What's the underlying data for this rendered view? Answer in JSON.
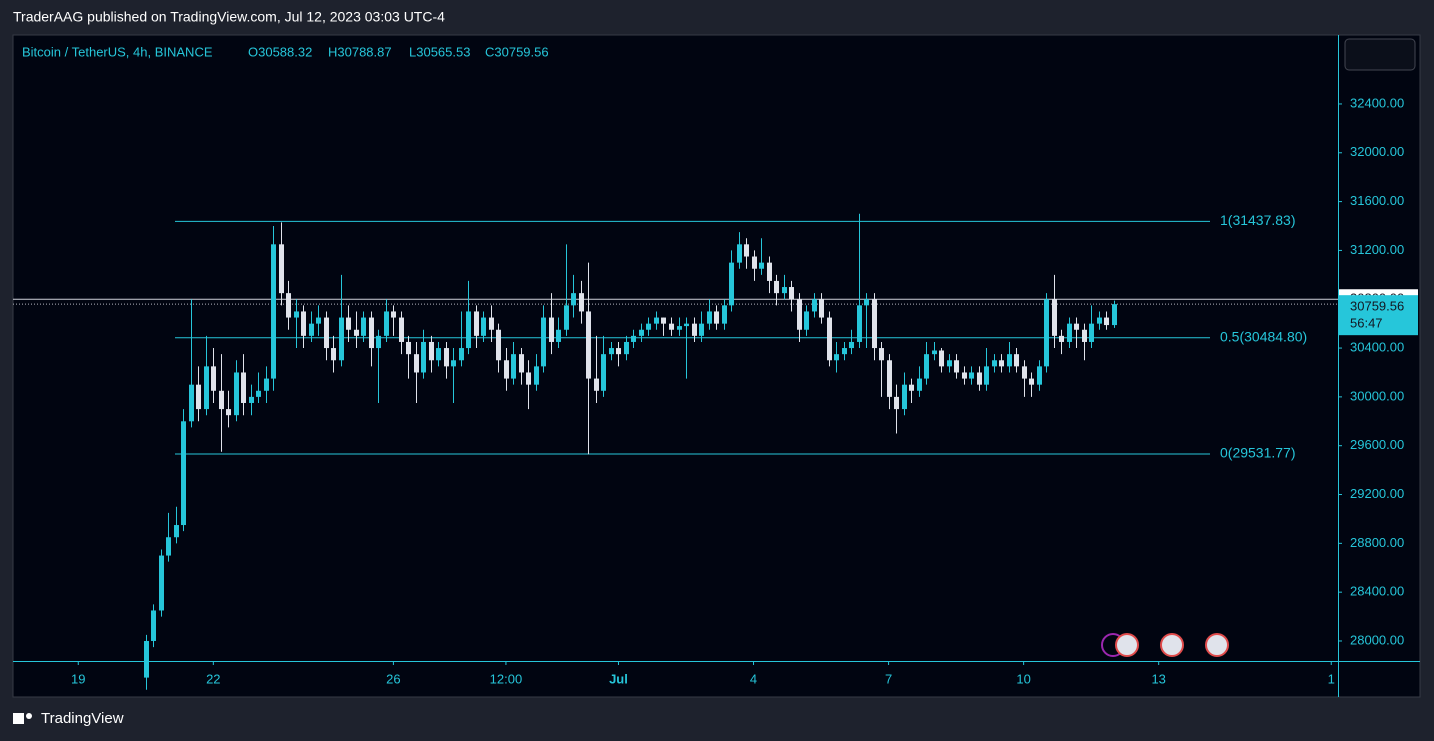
{
  "header": {
    "text": "TraderAAG published on TradingView.com, Jul 12, 2023 03:03 UTC-4"
  },
  "footer": {
    "brand": "TradingView"
  },
  "chart_data": {
    "type": "candlestick",
    "legend": {
      "symbol": "Bitcoin / TetherUS, 4h, BINANCE",
      "open": "O30588.32",
      "high": "H30788.87",
      "low": "L30565.53",
      "close": "C30759.56"
    },
    "up_color": "#26c6da",
    "down_color": "#e0e3eb",
    "xlim": [
      -17.7,
      158.9
    ],
    "ylim": [
      27836,
      32965
    ],
    "xticks": [
      {
        "value": -9,
        "label": "19"
      },
      {
        "value": 9,
        "label": "22"
      },
      {
        "value": 33,
        "label": "26"
      },
      {
        "value": 48,
        "label": "12:00"
      },
      {
        "value": 63,
        "label": "Jul"
      },
      {
        "value": 81,
        "label": "4"
      },
      {
        "value": 99,
        "label": "7"
      },
      {
        "value": 117,
        "label": "10"
      },
      {
        "value": 135,
        "label": "13"
      },
      {
        "value": 158,
        "label": "1"
      }
    ],
    "yticks": [
      {
        "value": 28000,
        "label": "28000.00"
      },
      {
        "value": 28400,
        "label": "28400.00"
      },
      {
        "value": 28800,
        "label": "28800.00"
      },
      {
        "value": 29200,
        "label": "29200.00"
      },
      {
        "value": 29600,
        "label": "29600.00"
      },
      {
        "value": 30000,
        "label": "30000.00"
      },
      {
        "value": 30400,
        "label": "30400.00"
      },
      {
        "value": 30800,
        "label": "30800.00"
      },
      {
        "value": 31200,
        "label": "31200.00"
      },
      {
        "value": 31600,
        "label": "31600.00"
      },
      {
        "value": 32000,
        "label": "32000.00"
      },
      {
        "value": 32400,
        "label": "32400.00"
      }
    ],
    "levels": [
      {
        "value": 31437.83,
        "label": "1(31437.83)"
      },
      {
        "value": 30484.8,
        "label": "0.5(30484.80)"
      },
      {
        "value": 29531.77,
        "label": "0(29531.77)"
      }
    ],
    "marker": {
      "value": 30800,
      "label": "30800.00"
    },
    "last_price": {
      "value": 30759.56,
      "label": "30759.56"
    },
    "countdown": "56:47",
    "open": [
      27700,
      28000,
      28250,
      28700,
      28850,
      28950,
      29800,
      30100,
      29900,
      30250,
      30050,
      29900,
      29850,
      30200,
      29950,
      30000,
      30050,
      30150,
      31250,
      30850,
      30650,
      30700,
      30500,
      30600,
      30650,
      30400,
      30300,
      30650,
      30550,
      30500,
      30650,
      30400,
      30500,
      30700,
      30650,
      30450,
      30350,
      30200,
      30450,
      30300,
      30400,
      30250,
      30300,
      30400,
      30700,
      30500,
      30650,
      30550,
      30300,
      30150,
      30350,
      30200,
      30100,
      30250,
      30650,
      30450,
      30550,
      30750,
      30850,
      30700,
      30150,
      30050,
      30350,
      30400,
      30350,
      30450,
      30500,
      30550,
      30600,
      30650,
      30600,
      30550,
      30580,
      30600,
      30500,
      30600,
      30700,
      30600,
      30750,
      31100,
      31250,
      31150,
      31050,
      31100,
      30950,
      30850,
      30900,
      30800,
      30550,
      30700,
      30800,
      30650,
      30300,
      30350,
      30400,
      30450,
      30750,
      30800,
      30400,
      30300,
      30000,
      29900,
      30100,
      30050,
      30150,
      30350,
      30380,
      30250,
      30300,
      30200,
      30150,
      30200,
      30100,
      30250,
      30300,
      30250,
      30350,
      30250,
      30150,
      30100,
      30250,
      30800,
      30500,
      30450,
      30600,
      30550,
      30450,
      30600,
      30650,
      30588.32
    ],
    "high": [
      28050,
      28300,
      28750,
      29050,
      29100,
      29900,
      30800,
      30250,
      30500,
      30400,
      30350,
      30050,
      30300,
      30350,
      30100,
      30200,
      30250,
      31400,
      31430,
      30950,
      30800,
      30750,
      30700,
      30750,
      30700,
      30500,
      31000,
      30750,
      30700,
      30700,
      30700,
      30550,
      30800,
      30750,
      30700,
      30500,
      30450,
      30550,
      30500,
      30450,
      30450,
      30400,
      30700,
      30950,
      30750,
      30700,
      30750,
      30600,
      30400,
      30450,
      30400,
      30300,
      30350,
      30750,
      30850,
      30650,
      31250,
      31000,
      30950,
      31100,
      30500,
      30500,
      30450,
      30450,
      30500,
      30550,
      30600,
      30650,
      30700,
      30650,
      30650,
      30650,
      30650,
      30650,
      30700,
      30800,
      30750,
      30800,
      31200,
      31350,
      31300,
      31200,
      31300,
      31150,
      31000,
      31000,
      30950,
      30850,
      30750,
      30850,
      30850,
      30700,
      30450,
      30450,
      30550,
      31500,
      30850,
      30850,
      30450,
      30350,
      30100,
      30200,
      30150,
      30250,
      30450,
      30450,
      30400,
      30350,
      30350,
      30250,
      30250,
      30250,
      30400,
      30350,
      30350,
      30450,
      30400,
      30300,
      30200,
      30300,
      30850,
      31000,
      30550,
      30650,
      30650,
      30600,
      30750,
      30700,
      30700,
      30788.87
    ],
    "low": [
      27600,
      27950,
      28200,
      28650,
      28800,
      28900,
      29750,
      29800,
      29850,
      29950,
      29550,
      29750,
      29800,
      29850,
      29850,
      29950,
      29950,
      30050,
      30750,
      30550,
      30400,
      30400,
      30450,
      30500,
      30300,
      30200,
      30250,
      30450,
      30400,
      30450,
      30250,
      29950,
      30450,
      30500,
      30350,
      30150,
      29950,
      30150,
      30200,
      30250,
      30150,
      29950,
      30250,
      30350,
      30400,
      30450,
      30450,
      30200,
      30050,
      30100,
      30100,
      29900,
      30050,
      30200,
      30350,
      30400,
      30500,
      30650,
      30600,
      29530,
      29950,
      30000,
      30300,
      30250,
      30300,
      30400,
      30450,
      30500,
      30550,
      30500,
      30500,
      30500,
      30150,
      30450,
      30450,
      30550,
      30550,
      30550,
      30700,
      31050,
      31050,
      30950,
      31000,
      30850,
      30750,
      30800,
      30700,
      30450,
      30500,
      30650,
      30600,
      30250,
      30200,
      30300,
      30350,
      30400,
      30400,
      30300,
      30000,
      29900,
      29700,
      29850,
      29950,
      30000,
      30100,
      30300,
      30200,
      30200,
      30150,
      30100,
      30100,
      30050,
      30050,
      30200,
      30200,
      30200,
      30200,
      30000,
      30000,
      30050,
      30200,
      30400,
      30350,
      30400,
      30400,
      30300,
      30400,
      30550,
      30550,
      30565.53
    ],
    "close": [
      28000,
      28250,
      28700,
      28850,
      28950,
      29800,
      30100,
      29900,
      30250,
      30050,
      29900,
      29850,
      30200,
      29950,
      30000,
      30050,
      30150,
      31250,
      30850,
      30650,
      30700,
      30500,
      30600,
      30650,
      30400,
      30300,
      30650,
      30550,
      30500,
      30650,
      30400,
      30500,
      30700,
      30650,
      30450,
      30350,
      30200,
      30450,
      30300,
      30400,
      30250,
      30300,
      30400,
      30700,
      30500,
      30650,
      30550,
      30300,
      30150,
      30350,
      30200,
      30100,
      30250,
      30650,
      30450,
      30550,
      30750,
      30850,
      30700,
      30150,
      30050,
      30350,
      30400,
      30350,
      30450,
      30500,
      30550,
      30600,
      30650,
      30600,
      30550,
      30580,
      30600,
      30500,
      30600,
      30700,
      30600,
      30750,
      31100,
      31250,
      31150,
      31050,
      31100,
      30950,
      30850,
      30900,
      30800,
      30550,
      30700,
      30800,
      30650,
      30300,
      30350,
      30400,
      30450,
      30750,
      30800,
      30400,
      30300,
      30000,
      29900,
      30100,
      30050,
      30150,
      30350,
      30380,
      30250,
      30300,
      30200,
      30150,
      30200,
      30100,
      30250,
      30300,
      30250,
      30350,
      30250,
      30150,
      30100,
      30250,
      30800,
      30500,
      30450,
      30600,
      30550,
      30450,
      30600,
      30650,
      30588.32,
      30759.56
    ]
  }
}
